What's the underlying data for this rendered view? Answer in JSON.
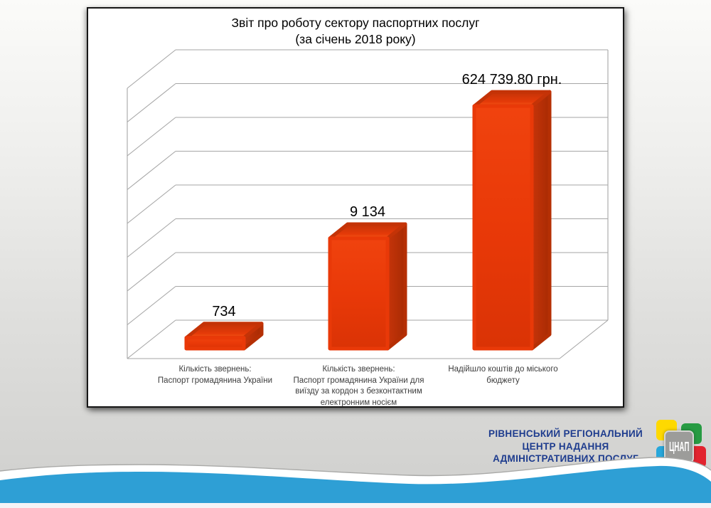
{
  "slide": {
    "title_line1": "Звіт про роботу сектору паспортних послуг",
    "title_line2": "(за січень 2018 року)"
  },
  "chart_data": {
    "type": "bar",
    "style": "3d-column",
    "title": "Звіт про роботу сектору паспортних послуг (за січень 2018 року)",
    "xlabel": "",
    "ylabel": "",
    "legend": false,
    "gridlines": true,
    "gridline_count": 9,
    "categories": [
      "Кількість звернень: Паспорт громадянина України",
      "Кількість звернень: Паспорт громадянина України для виїзду за кордон з безконтактним електронним носієм",
      "Надійшло коштів до міського бюджету"
    ],
    "category_lines": [
      [
        "Кількість звернень:",
        "Паспорт громадянина  України"
      ],
      [
        "Кількість звернень:",
        "Паспорт громадянина  України для",
        "виїзду за  кордон з безконтактним",
        "електронним носієм"
      ],
      [
        "Надійшло  коштів до міського",
        "бюджету"
      ]
    ],
    "values": [
      734,
      9134,
      624739.8
    ],
    "data_labels": [
      "734",
      "9 134",
      "624 739.80 грн."
    ],
    "bar_height_fractions": [
      0.04,
      0.408,
      0.897
    ],
    "colors": {
      "bar_front": "#e93908",
      "bar_side": "#b52f04",
      "bar_top_back": "#c43307",
      "bar_top_front": "#f75818",
      "gridline": "#a6a6a6",
      "label_text": "#000000",
      "category_text": "#3d3d3d"
    }
  },
  "footer": {
    "org_lines": [
      "РІВНЕНСЬКИЙ РЕГІОНАЛЬНИЙ",
      "ЦЕНТР НАДАННЯ",
      "АДМІНІСТРАТИВНИХ ПОСЛУГ"
    ],
    "org_color": "#1e3c8e",
    "logo_text": "ЦНАП",
    "logo_colors": {
      "yellow": "#fed900",
      "green": "#279b43",
      "blue": "#28a7db",
      "red": "#e2242f",
      "badge": "#9c9c9a"
    },
    "wave_color": "#2e9fd5",
    "wave_strip_color": "#f3f3f6"
  }
}
